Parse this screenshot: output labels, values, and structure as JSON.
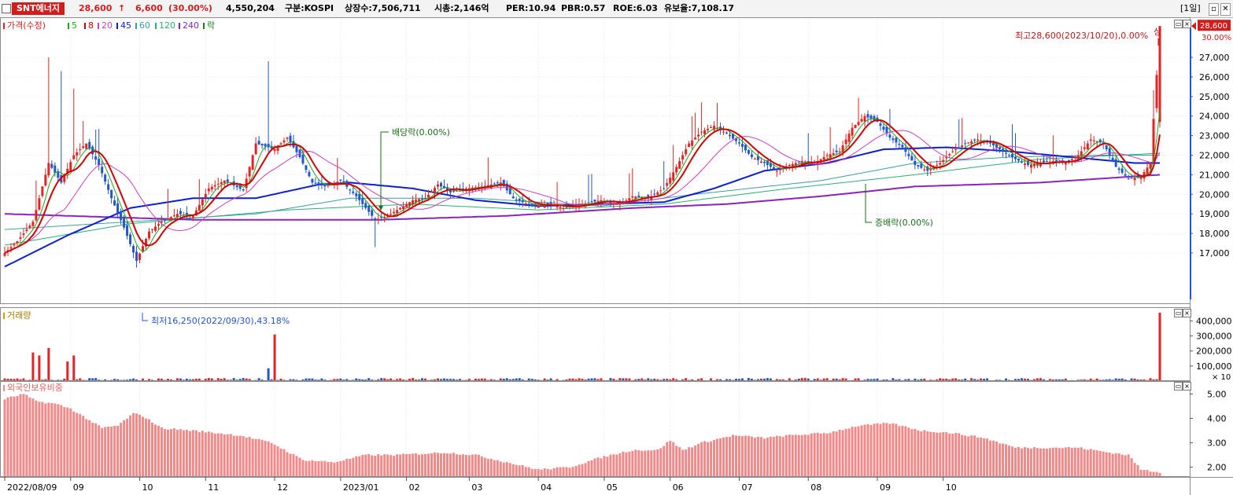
{
  "header": {
    "stock_name": "SNT에너지",
    "price": "28,600",
    "arrow": "↑",
    "change": "6,600",
    "change_pct": "(30.00%)",
    "volume": "4,550,204",
    "market": "구분:KOSPI",
    "listed": "상장수:7,506,711",
    "mktcap": "시총:2,146억",
    "per": "PER:10.94",
    "pbr": "PBR:0.57",
    "roe": "ROE:6.03",
    "float": "유보율:7,108.17",
    "period_button": "[1일]",
    "restore_icon": "restore-icon",
    "close_icon": "close-icon"
  },
  "legend": {
    "price_label": "가격(수정)",
    "ma5": "5",
    "ma8": "8",
    "ma20": "20",
    "ma45": "45",
    "ma60": "60",
    "ma120": "120",
    "ma240": "240",
    "ex_label": "락",
    "volume_label": "거래량",
    "foreign_label": "외국인보유비중"
  },
  "colors": {
    "up": "#e32424",
    "down": "#2356c9",
    "ma5": "#1fa51f",
    "ma8": "#d40000",
    "ma20": "#cc3fbf",
    "ma45": "#0a1fcf",
    "ma60": "#3aa0a0",
    "ma120": "#2bb070",
    "ma240": "#8a22c0",
    "foreign": "#f08a8a"
  },
  "annotations": {
    "high": "최고28,600(2023/10/20),0.00%",
    "limit_up": "상",
    "low": "최저16,250(2022/09/30),43.18%",
    "dividend": "배당락(0.00%)",
    "stock_dividend": "증배락(0.00%)"
  },
  "chart_data": [
    {
      "type": "candlestick",
      "title": "가격(수정)",
      "period": "daily",
      "x_ticks": [
        "2022/08/09",
        "09",
        "10",
        "11",
        "12",
        "2023/01",
        "02",
        "03",
        "04",
        "05",
        "06",
        "07",
        "08",
        "09",
        "10"
      ],
      "y_ticks": [
        17000,
        18000,
        19000,
        20000,
        21000,
        22000,
        23000,
        24000,
        25000,
        26000,
        27000
      ],
      "y_tick_labels": [
        "17,000",
        "18,000",
        "19,000",
        "20,000",
        "21,000",
        "22,000",
        "23,000",
        "24,000",
        "25,000",
        "26,000",
        "27,000"
      ],
      "extra_axis_labels": [
        "28,600",
        "30.00%"
      ],
      "ylim": [
        16000,
        28600
      ],
      "close_anchors": [
        [
          0,
          17000
        ],
        [
          4,
          17600
        ],
        [
          9,
          18600
        ],
        [
          14,
          21600
        ],
        [
          18,
          20600
        ],
        [
          22,
          22000
        ],
        [
          26,
          22600
        ],
        [
          30,
          21500
        ],
        [
          34,
          19800
        ],
        [
          38,
          18300
        ],
        [
          42,
          16600
        ],
        [
          46,
          18100
        ],
        [
          50,
          18600
        ],
        [
          55,
          19000
        ],
        [
          60,
          18900
        ],
        [
          65,
          20300
        ],
        [
          70,
          20700
        ],
        [
          76,
          20200
        ],
        [
          80,
          22600
        ],
        [
          86,
          22300
        ],
        [
          90,
          22900
        ],
        [
          94,
          21900
        ],
        [
          98,
          20600
        ],
        [
          102,
          20400
        ],
        [
          107,
          20700
        ],
        [
          112,
          19900
        ],
        [
          118,
          18700
        ],
        [
          122,
          18900
        ],
        [
          126,
          19300
        ],
        [
          130,
          19700
        ],
        [
          134,
          19800
        ],
        [
          138,
          20500
        ],
        [
          142,
          20100
        ],
        [
          147,
          20300
        ],
        [
          152,
          20400
        ],
        [
          158,
          20600
        ],
        [
          162,
          19800
        ],
        [
          168,
          19400
        ],
        [
          174,
          19500
        ],
        [
          178,
          19300
        ],
        [
          184,
          19500
        ],
        [
          190,
          19700
        ],
        [
          196,
          19500
        ],
        [
          200,
          19900
        ],
        [
          205,
          19800
        ],
        [
          210,
          20300
        ],
        [
          214,
          21400
        ],
        [
          218,
          22600
        ],
        [
          222,
          23200
        ],
        [
          226,
          23500
        ],
        [
          230,
          23100
        ],
        [
          234,
          22600
        ],
        [
          238,
          21900
        ],
        [
          242,
          21600
        ],
        [
          246,
          21200
        ],
        [
          250,
          21500
        ],
        [
          254,
          21700
        ],
        [
          258,
          21600
        ],
        [
          262,
          22000
        ],
        [
          266,
          22200
        ],
        [
          270,
          23400
        ],
        [
          274,
          24000
        ],
        [
          278,
          23700
        ],
        [
          282,
          22900
        ],
        [
          286,
          22400
        ],
        [
          290,
          21500
        ],
        [
          294,
          21200
        ],
        [
          298,
          21600
        ],
        [
          302,
          22200
        ],
        [
          306,
          22600
        ],
        [
          310,
          22800
        ],
        [
          314,
          22600
        ],
        [
          318,
          22200
        ],
        [
          322,
          21800
        ],
        [
          326,
          21500
        ],
        [
          330,
          21600
        ],
        [
          334,
          21700
        ],
        [
          338,
          21600
        ],
        [
          342,
          22000
        ],
        [
          346,
          22800
        ],
        [
          350,
          22600
        ],
        [
          354,
          21400
        ],
        [
          358,
          20800
        ],
        [
          362,
          20900
        ],
        [
          365,
          21600
        ],
        [
          367,
          26100
        ],
        [
          368,
          28600
        ]
      ],
      "series_moving_averages": [
        "5",
        "8",
        "20",
        "45",
        "60",
        "120",
        "240"
      ],
      "ma_anchors": {
        "ma45": [
          [
            0,
            16300
          ],
          [
            20,
            17900
          ],
          [
            40,
            19300
          ],
          [
            60,
            19800
          ],
          [
            80,
            19800
          ],
          [
            100,
            20500
          ],
          [
            110,
            20600
          ],
          [
            130,
            20300
          ],
          [
            150,
            19700
          ],
          [
            170,
            19400
          ],
          [
            190,
            19500
          ],
          [
            210,
            19600
          ],
          [
            226,
            20300
          ],
          [
            242,
            21200
          ],
          [
            262,
            21600
          ],
          [
            280,
            22300
          ],
          [
            300,
            22400
          ],
          [
            320,
            22200
          ],
          [
            340,
            21900
          ],
          [
            360,
            21600
          ],
          [
            368,
            21600
          ]
        ],
        "ma60": [
          [
            0,
            18200
          ],
          [
            40,
            18600
          ],
          [
            80,
            19000
          ],
          [
            110,
            19800
          ],
          [
            150,
            19800
          ],
          [
            190,
            19400
          ],
          [
            220,
            20000
          ],
          [
            260,
            20700
          ],
          [
            290,
            21600
          ],
          [
            320,
            21900
          ],
          [
            350,
            22000
          ],
          [
            368,
            22000
          ]
        ],
        "ma120": [
          [
            0,
            17400
          ],
          [
            40,
            18500
          ],
          [
            90,
            19200
          ],
          [
            130,
            19500
          ],
          [
            170,
            19200
          ],
          [
            210,
            19500
          ],
          [
            250,
            20300
          ],
          [
            290,
            21000
          ],
          [
            330,
            21800
          ],
          [
            368,
            22100
          ]
        ],
        "ma240": [
          [
            0,
            19000
          ],
          [
            60,
            18700
          ],
          [
            120,
            18700
          ],
          [
            160,
            18900
          ],
          [
            200,
            19300
          ],
          [
            230,
            19500
          ],
          [
            260,
            19900
          ],
          [
            290,
            20400
          ],
          [
            330,
            20600
          ],
          [
            368,
            21000
          ]
        ]
      },
      "annotations": [
        "최고28,600(2023/10/20),0.00%",
        "최저16,250(2022/09/30),43.18%",
        "배당락(0.00%)",
        "증배락(0.00%)"
      ],
      "legend": [
        "가격(수정)",
        "5",
        "8",
        "20",
        "45",
        "60",
        "120",
        "240",
        "락"
      ],
      "legend_placement": "top-left"
    },
    {
      "type": "bar",
      "title": "거래량",
      "y_ticks": [
        100000,
        200000,
        300000,
        400000
      ],
      "y_tick_labels": [
        "100,000",
        "200,000",
        "300,000",
        "400,000"
      ],
      "unit_label": "× 10",
      "ylim": [
        0,
        470000
      ],
      "spikes": [
        [
          9,
          190000
        ],
        [
          11,
          170000
        ],
        [
          14,
          220000
        ],
        [
          20,
          130000
        ],
        [
          22,
          170000
        ],
        [
          84,
          85000
        ],
        [
          86,
          310000
        ],
        [
          368,
          455000
        ]
      ],
      "baseline_volume": 12000
    },
    {
      "type": "bar",
      "title": "외국인보유비중",
      "y_ticks": [
        2.0,
        3.0,
        4.0,
        5.0
      ],
      "y_tick_labels": [
        "2.00",
        "3.00",
        "4.00",
        "5.00"
      ],
      "ylim": [
        1.6,
        5.4
      ],
      "anchors": [
        [
          0,
          4.8
        ],
        [
          6,
          5.0
        ],
        [
          10,
          4.7
        ],
        [
          16,
          4.6
        ],
        [
          21,
          4.4
        ],
        [
          26,
          4.0
        ],
        [
          31,
          3.6
        ],
        [
          36,
          3.7
        ],
        [
          41,
          4.2
        ],
        [
          44,
          4.1
        ],
        [
          50,
          3.6
        ],
        [
          60,
          3.5
        ],
        [
          75,
          3.3
        ],
        [
          85,
          3.0
        ],
        [
          95,
          2.3
        ],
        [
          105,
          2.2
        ],
        [
          115,
          2.5
        ],
        [
          125,
          2.5
        ],
        [
          140,
          2.6
        ],
        [
          150,
          2.5
        ],
        [
          160,
          2.2
        ],
        [
          170,
          1.9
        ],
        [
          180,
          2.0
        ],
        [
          190,
          2.4
        ],
        [
          200,
          2.7
        ],
        [
          208,
          2.7
        ],
        [
          212,
          3.1
        ],
        [
          216,
          2.7
        ],
        [
          222,
          3.0
        ],
        [
          232,
          3.3
        ],
        [
          242,
          3.2
        ],
        [
          250,
          3.3
        ],
        [
          262,
          3.4
        ],
        [
          272,
          3.7
        ],
        [
          282,
          3.8
        ],
        [
          292,
          3.5
        ],
        [
          302,
          3.4
        ],
        [
          312,
          3.2
        ],
        [
          322,
          2.8
        ],
        [
          332,
          2.8
        ],
        [
          342,
          2.8
        ],
        [
          352,
          2.6
        ],
        [
          358,
          2.5
        ],
        [
          362,
          1.9
        ],
        [
          368,
          1.8
        ]
      ]
    }
  ]
}
